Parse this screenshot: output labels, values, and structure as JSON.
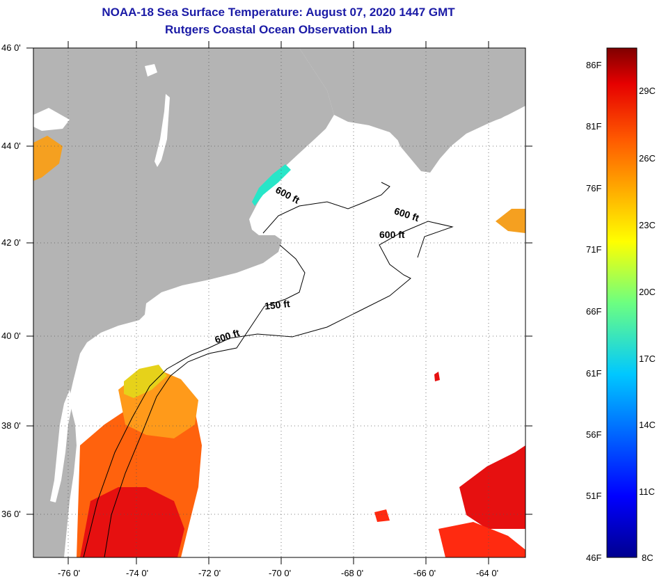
{
  "title_line1": "NOAA-18 Sea Surface Temperature:  August 07, 2020 1447 GMT",
  "title_line2": "Rutgers Coastal Ocean Observation Lab",
  "latitude_labels": [
    "46 0'",
    "44 0'",
    "42 0'",
    "40 0'",
    "38 0'",
    "36 0'"
  ],
  "longitude_labels": [
    "-76 0'",
    "-74 0'",
    "-72 0'",
    "-70 0'",
    "-68 0'",
    "-66 0'",
    "-64 0'"
  ],
  "contour_labels": [
    "600 ft",
    "600 ft",
    "600 ft",
    "150 ft",
    "600 ft"
  ],
  "colorbar": {
    "fahrenheit_labels": [
      "86F",
      "81F",
      "76F",
      "71F",
      "66F",
      "61F",
      "56F",
      "51F",
      "46F"
    ],
    "celsius_labels": [
      "29C",
      "26C",
      "23C",
      "20C",
      "17C",
      "14C",
      "11C",
      "8C"
    ]
  },
  "colors": {
    "title": "#1a1aa6",
    "land": "#b4b4b4",
    "ocean": "#ffffff",
    "grid": "#555555"
  }
}
